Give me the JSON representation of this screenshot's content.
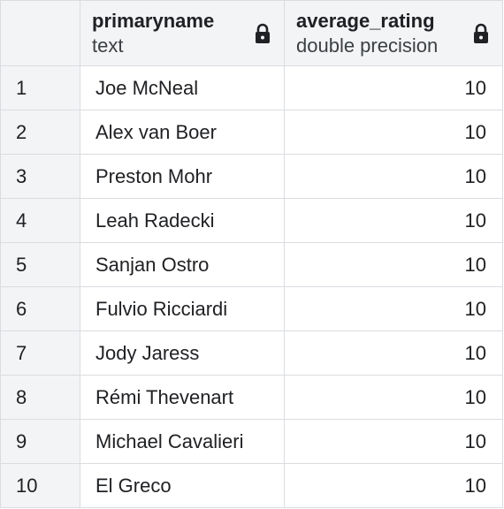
{
  "columns": [
    {
      "name": "primaryname",
      "type": "text",
      "locked": true,
      "icon": "lock-icon"
    },
    {
      "name": "average_rating",
      "type": "double precision",
      "locked": true,
      "icon": "lock-icon"
    }
  ],
  "rows": [
    {
      "num": "1",
      "primaryname": "Joe McNeal",
      "average_rating": "10"
    },
    {
      "num": "2",
      "primaryname": "Alex van Boer",
      "average_rating": "10"
    },
    {
      "num": "3",
      "primaryname": "Preston Mohr",
      "average_rating": "10"
    },
    {
      "num": "4",
      "primaryname": "Leah Radecki",
      "average_rating": "10"
    },
    {
      "num": "5",
      "primaryname": "Sanjan Ostro",
      "average_rating": "10"
    },
    {
      "num": "6",
      "primaryname": "Fulvio Ricciardi",
      "average_rating": "10"
    },
    {
      "num": "7",
      "primaryname": "Jody Jaress",
      "average_rating": "10"
    },
    {
      "num": "8",
      "primaryname": "Rémi Thevenart",
      "average_rating": "10"
    },
    {
      "num": "9",
      "primaryname": "Michael Cavalieri",
      "average_rating": "10"
    },
    {
      "num": "10",
      "primaryname": "El Greco",
      "average_rating": "10"
    }
  ]
}
